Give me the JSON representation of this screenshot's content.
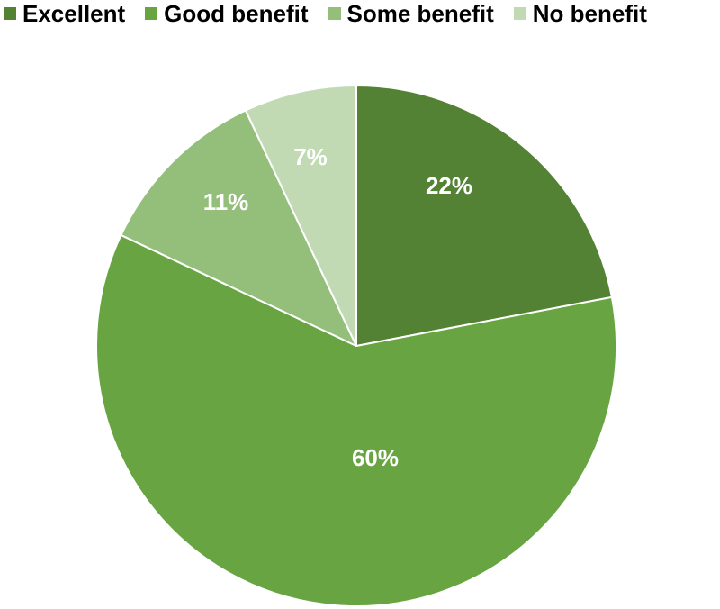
{
  "chart_data": {
    "type": "pie",
    "title": "",
    "start_angle_deg": 0,
    "direction": "clockwise",
    "legend_position": "top",
    "slices": [
      {
        "label": "Excellent",
        "value": 22,
        "value_label": "22%",
        "color": "#548235"
      },
      {
        "label": "Good benefit",
        "value": 60,
        "value_label": "60%",
        "color": "#69A443"
      },
      {
        "label": "Some benefit",
        "value": 11,
        "value_label": "11%",
        "color": "#93BF7A"
      },
      {
        "label": "No benefit",
        "value": 7,
        "value_label": "7%",
        "color": "#C2DAB4"
      }
    ]
  }
}
